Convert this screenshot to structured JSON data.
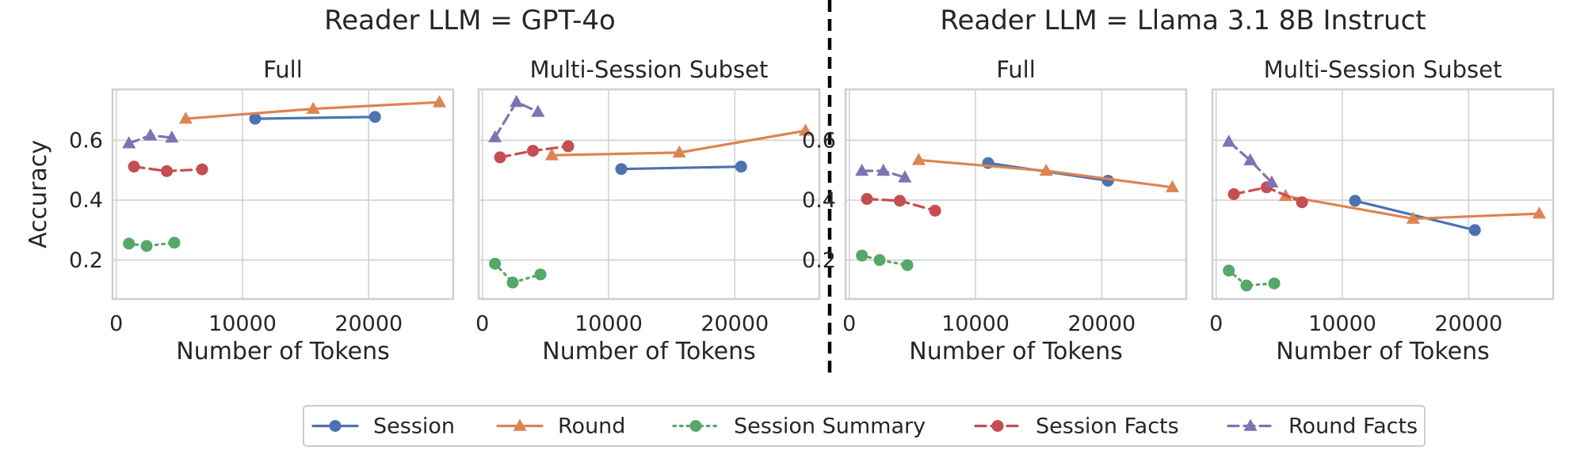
{
  "figure": {
    "group_titles": [
      "Reader LLM = GPT-4o",
      "Reader LLM = Llama 3.1 8B Instruct"
    ]
  },
  "series_styles": [
    {
      "name": "Session",
      "color": "#4c72b0",
      "marker": "circle",
      "dash": "solid"
    },
    {
      "name": "Round",
      "color": "#dd8452",
      "marker": "triangle",
      "dash": "solid"
    },
    {
      "name": "Session Summary",
      "color": "#55a868",
      "marker": "circle",
      "dash": "dotted"
    },
    {
      "name": "Session Facts",
      "color": "#c44e52",
      "marker": "circle",
      "dash": "dashed"
    },
    {
      "name": "Round Facts",
      "color": "#8172b3",
      "marker": "triangle",
      "dash": "dashed"
    }
  ],
  "chart_data": [
    {
      "type": "line",
      "group": "Reader LLM = GPT-4o",
      "title": "Full",
      "xlabel": "Number of Tokens",
      "ylabel": "Accuracy",
      "xlim": [
        -300,
        26700
      ],
      "ylim": [
        0.07,
        0.77
      ],
      "xticks": [
        "0",
        "10000",
        "20000"
      ],
      "yticks": [
        "0.2",
        "0.4",
        "0.6"
      ],
      "grid": true,
      "series": [
        {
          "name": "Session",
          "x": [
            11000,
            20500
          ],
          "y": [
            0.672,
            0.678
          ]
        },
        {
          "name": "Round",
          "x": [
            5500,
            15600,
            25600
          ],
          "y": [
            0.672,
            0.705,
            0.727
          ]
        },
        {
          "name": "Session Summary",
          "x": [
            1000,
            2400,
            4600
          ],
          "y": [
            0.255,
            0.247,
            0.258
          ]
        },
        {
          "name": "Session Facts",
          "x": [
            1400,
            4000,
            6800
          ],
          "y": [
            0.512,
            0.497,
            0.503
          ]
        },
        {
          "name": "Round Facts",
          "x": [
            1000,
            2700,
            4400
          ],
          "y": [
            0.59,
            0.616,
            0.609
          ]
        }
      ]
    },
    {
      "type": "line",
      "group": "Reader LLM = GPT-4o",
      "title": "Multi-Session Subset",
      "xlabel": "Number of Tokens",
      "ylabel": "",
      "xlim": [
        -300,
        26700
      ],
      "ylim": [
        0.07,
        0.77
      ],
      "xticks": [
        "0",
        "10000",
        "20000"
      ],
      "yticks": [
        "0.2",
        "0.4",
        "0.6"
      ],
      "grid": true,
      "series": [
        {
          "name": "Session",
          "x": [
            11000,
            20500
          ],
          "y": [
            0.504,
            0.512
          ]
        },
        {
          "name": "Round",
          "x": [
            5500,
            15600,
            25600
          ],
          "y": [
            0.55,
            0.559,
            0.632
          ]
        },
        {
          "name": "Session Summary",
          "x": [
            1000,
            2400,
            4600
          ],
          "y": [
            0.188,
            0.125,
            0.152
          ]
        },
        {
          "name": "Session Facts",
          "x": [
            1400,
            4000,
            6800
          ],
          "y": [
            0.543,
            0.565,
            0.58
          ]
        },
        {
          "name": "Round Facts",
          "x": [
            1000,
            2700,
            4400
          ],
          "y": [
            0.61,
            0.728,
            0.695
          ]
        }
      ]
    },
    {
      "type": "line",
      "group": "Reader LLM = Llama 3.1 8B Instruct",
      "title": "Full",
      "xlabel": "Number of Tokens",
      "ylabel": "",
      "xlim": [
        -300,
        26700
      ],
      "ylim": [
        0.07,
        0.77
      ],
      "xticks": [
        "0",
        "10000",
        "20000"
      ],
      "yticks": [
        "0.2",
        "0.4",
        "0.6"
      ],
      "grid": true,
      "series": [
        {
          "name": "Session",
          "x": [
            11000,
            20500
          ],
          "y": [
            0.524,
            0.465
          ]
        },
        {
          "name": "Round",
          "x": [
            5500,
            15600,
            25600
          ],
          "y": [
            0.534,
            0.498,
            0.443
          ]
        },
        {
          "name": "Session Summary",
          "x": [
            1000,
            2400,
            4600
          ],
          "y": [
            0.215,
            0.2,
            0.183
          ]
        },
        {
          "name": "Session Facts",
          "x": [
            1400,
            4000,
            6800
          ],
          "y": [
            0.404,
            0.398,
            0.365
          ]
        },
        {
          "name": "Round Facts",
          "x": [
            1000,
            2700,
            4400
          ],
          "y": [
            0.498,
            0.498,
            0.476
          ]
        }
      ]
    },
    {
      "type": "line",
      "group": "Reader LLM = Llama 3.1 8B Instruct",
      "title": "Multi-Session Subset",
      "xlabel": "Number of Tokens",
      "ylabel": "",
      "xlim": [
        -300,
        26700
      ],
      "ylim": [
        0.07,
        0.77
      ],
      "xticks": [
        "0",
        "10000",
        "20000"
      ],
      "yticks": [
        "0.2",
        "0.4",
        "0.6"
      ],
      "grid": true,
      "series": [
        {
          "name": "Session",
          "x": [
            11000,
            20500
          ],
          "y": [
            0.398,
            0.3
          ]
        },
        {
          "name": "Round",
          "x": [
            5500,
            15600,
            25600
          ],
          "y": [
            0.414,
            0.338,
            0.355
          ]
        },
        {
          "name": "Session Summary",
          "x": [
            1000,
            2400,
            4600
          ],
          "y": [
            0.165,
            0.115,
            0.122
          ]
        },
        {
          "name": "Session Facts",
          "x": [
            1400,
            4000,
            6800
          ],
          "y": [
            0.42,
            0.443,
            0.393
          ]
        },
        {
          "name": "Round Facts",
          "x": [
            1000,
            2700,
            4400
          ],
          "y": [
            0.595,
            0.533,
            0.459
          ]
        }
      ]
    }
  ],
  "legend": {
    "placement": "bottom-center",
    "entries": [
      "Session",
      "Round",
      "Session Summary",
      "Session Facts",
      "Round Facts"
    ]
  }
}
